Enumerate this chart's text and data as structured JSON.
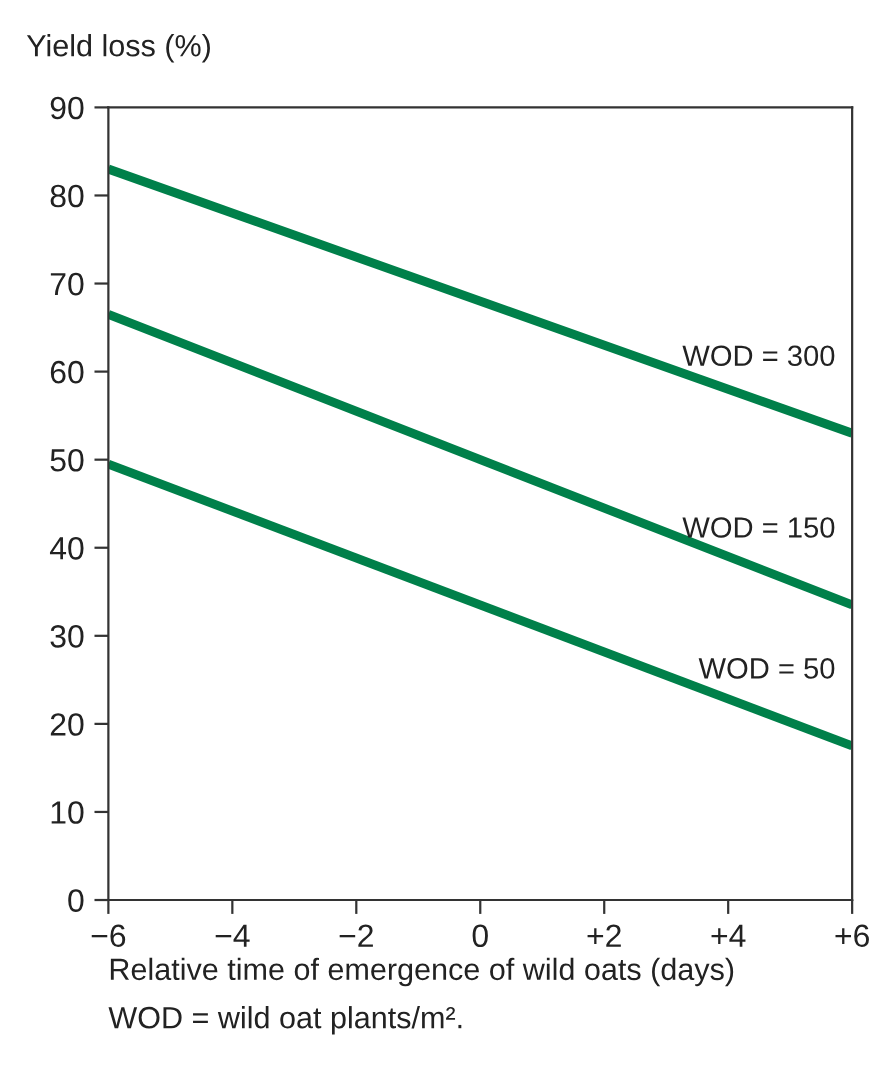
{
  "chart_data": {
    "type": "line",
    "ylabel": "Yield loss (%)",
    "xlabel": "Relative time of emergence of wild oats (days)",
    "annotations": [
      "WOD = wild oat plants/m²."
    ],
    "x": [
      -6,
      6
    ],
    "series": [
      {
        "name": "WOD = 300",
        "color": "#00804a",
        "values": [
          83,
          53
        ]
      },
      {
        "name": "WOD = 150",
        "color": "#00804a",
        "values": [
          66.5,
          33.5
        ]
      },
      {
        "name": "WOD = 50",
        "color": "#00804a",
        "values": [
          49.5,
          17.5
        ]
      }
    ],
    "xlim": [
      -6,
      6
    ],
    "ylim": [
      0,
      90
    ],
    "xticks": [
      {
        "value": -6,
        "label": "−6"
      },
      {
        "value": -4,
        "label": "−4"
      },
      {
        "value": -2,
        "label": "−2"
      },
      0,
      {
        "value": 2,
        "label": "+2"
      },
      {
        "value": 4,
        "label": "+4"
      },
      {
        "value": 6,
        "label": "+6"
      }
    ],
    "yticks": [
      0,
      10,
      20,
      30,
      40,
      50,
      60,
      70,
      80,
      90
    ],
    "grid": false,
    "legend": false,
    "marker": "none",
    "line_style": "solid"
  }
}
